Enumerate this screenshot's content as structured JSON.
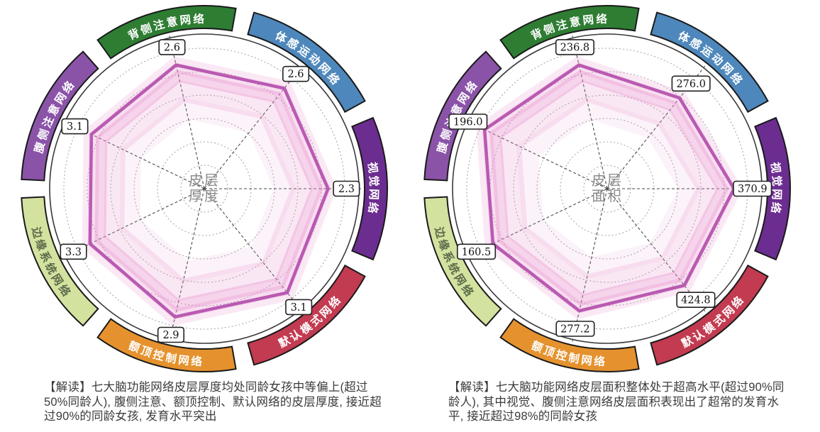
{
  "chart_data": [
    {
      "type": "radar",
      "center_title": "皮层厚度",
      "center_title_lines": [
        "皮层",
        "厚度"
      ],
      "categories": [
        "视觉网络",
        "体感运动网络",
        "背侧注意网络",
        "腹侧注意网络",
        "边缘系统网络",
        "额顶控制网络",
        "默认模式网络"
      ],
      "values": [
        2.3,
        2.6,
        2.6,
        3.1,
        3.3,
        2.9,
        3.1
      ],
      "radius_fraction": [
        0.8,
        0.83,
        0.82,
        0.81,
        0.82,
        0.85,
        0.86
      ],
      "gridlines": 6,
      "legend_position": "none",
      "caption": "【解读】七大脑功能网络皮层厚度均处同龄女孩中等偏上(超过50%同龄人), 腹侧注意、额顶控制、默认网络的皮层厚度, 接近超过90%的同龄女孩, 发育水平突出"
    },
    {
      "type": "radar",
      "center_title": "皮层面积",
      "center_title_lines": [
        "皮层",
        "面积"
      ],
      "categories": [
        "视觉网络",
        "体感运动网络",
        "背侧注意网络",
        "腹侧注意网络",
        "边缘系统网络",
        "额顶控制网络",
        "默认模式网络"
      ],
      "values": [
        370.9,
        276.0,
        236.8,
        196.0,
        160.5,
        277.2,
        424.8
      ],
      "radius_fraction": [
        0.82,
        0.75,
        0.82,
        0.88,
        0.82,
        0.81,
        0.8
      ],
      "gridlines": 6,
      "legend_position": "none",
      "caption": "【解读】七大脑功能网络皮层面积整体处于超高水平(超过90%同龄人), 其中视觉、腹侧注意网络皮层面积表现出了超常的发育水平, 接近超过98%的同龄女孩"
    }
  ],
  "networks": [
    {
      "name": "视觉网络",
      "slug": "visual-network",
      "arc_color": "#6c2d90",
      "text_color": "#ffffff",
      "flipped": false
    },
    {
      "name": "体感运动网络",
      "slug": "somatomotor-network",
      "arc_color": "#4e87bb",
      "text_color": "#ffffff",
      "flipped": false
    },
    {
      "name": "背侧注意网络",
      "slug": "dorsal-attention-network",
      "arc_color": "#2e7d33",
      "text_color": "#ffffff",
      "flipped": false
    },
    {
      "name": "腹侧注意网络",
      "slug": "ventral-attention-network",
      "arc_color": "#8a53a8",
      "text_color": "#ffffff",
      "flipped": false
    },
    {
      "name": "边缘系统网络",
      "slug": "limbic-system-network",
      "arc_color": "#d3e29f",
      "text_color": "#5d6b4b",
      "flipped": true
    },
    {
      "name": "额顶控制网络",
      "slug": "frontoparietal-control-network",
      "arc_color": "#e5922e",
      "text_color": "#ffffff",
      "flipped": true
    },
    {
      "name": "默认模式网络",
      "slug": "default-mode-network",
      "arc_color": "#c23b50",
      "text_color": "#ffffff",
      "flipped": true
    }
  ],
  "style": {
    "line_color": "#b95ab2",
    "band_color": "#e891cd",
    "grid_color": "#a8a8a8",
    "spoke_color": "#4a4a4a",
    "outer_ring_color": "#3a3a3a",
    "arc_stroke_color": "#1a1a1a",
    "value_label_border": "#222222",
    "value_label_bg": "#ffffff",
    "value_label_text": "#111111",
    "center_text_color": "#8c8c8c",
    "caption_color": "#3b3b3b",
    "background": "#ffffff"
  }
}
